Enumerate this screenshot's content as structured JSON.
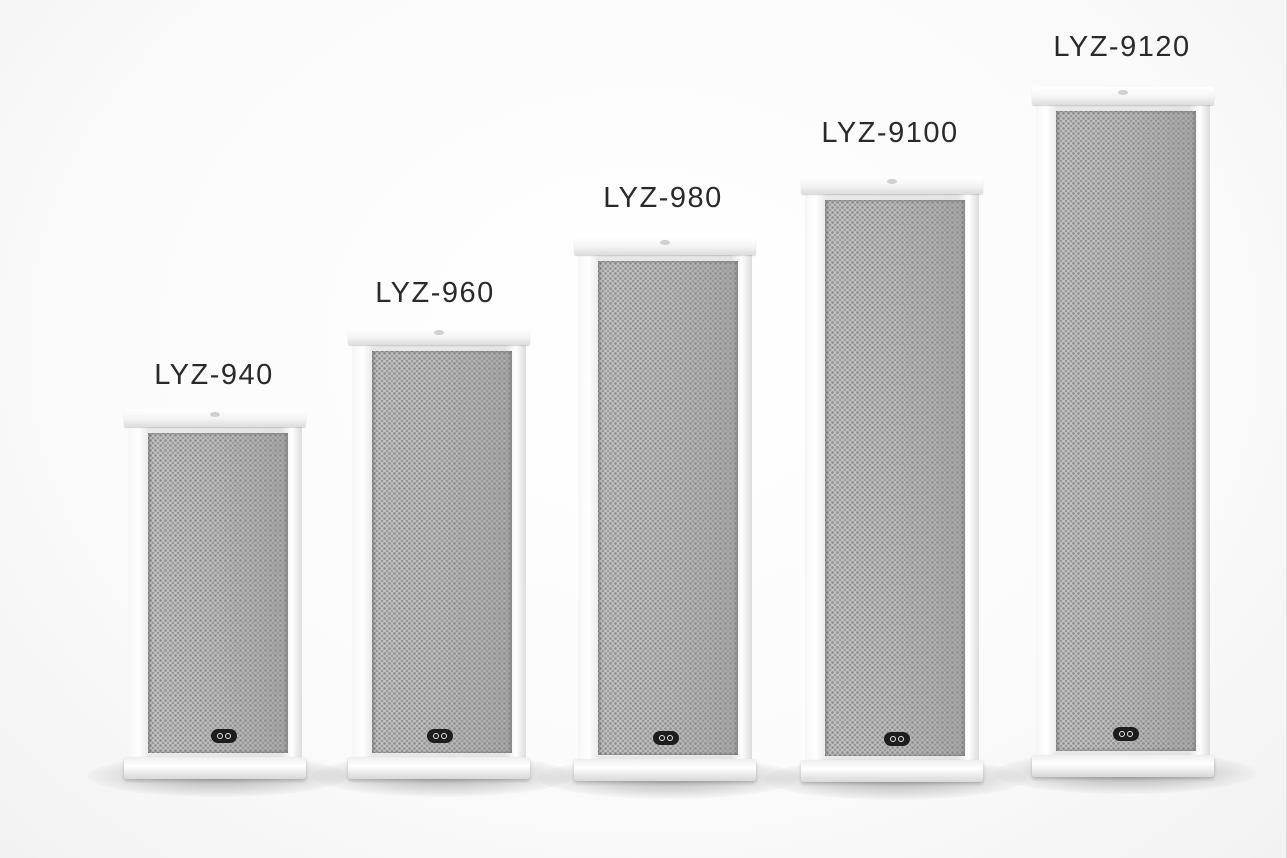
{
  "models": [
    {
      "label": "LYZ-940"
    },
    {
      "label": "LYZ-960"
    },
    {
      "label": "LYZ-980"
    },
    {
      "label": "LYZ-9100"
    },
    {
      "label": "LYZ-9120"
    }
  ],
  "colors": {
    "background": "#ffffff",
    "label_text": "#2a2a2a",
    "speaker_body": "#e9e9e9",
    "grille": "#b9b9b9",
    "logo_badge": "#1d1d1d"
  },
  "icon_names": [
    "speaker-brand-logo-icon"
  ]
}
